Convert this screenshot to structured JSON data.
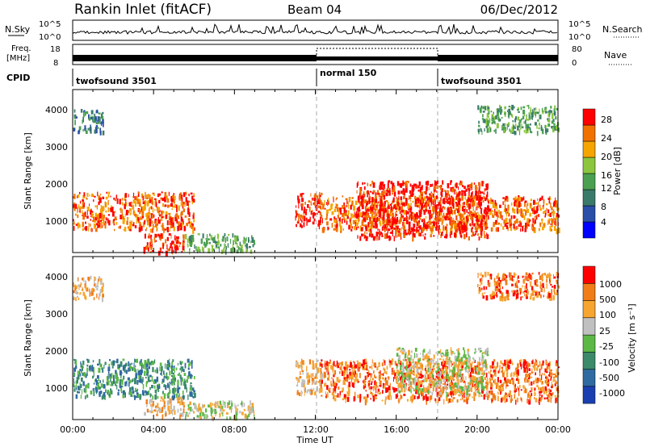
{
  "header": {
    "station": "Rankin Inlet (fitACF)",
    "beam": "Beam 04",
    "date": "06/Dec/2012"
  },
  "noise_panel": {
    "left_label": "N.Sky",
    "right_label": "N.Search",
    "left_ticks": [
      "10^5",
      "10^0"
    ],
    "right_ticks": [
      "10^5",
      "10^0"
    ]
  },
  "freq_panel": {
    "left_label_line1": "Freq.",
    "left_label_line2": "[MHz]",
    "left_ticks": [
      "18",
      "8"
    ],
    "right_label": "Nave",
    "right_ticks": [
      "80",
      "0"
    ]
  },
  "cpid": {
    "label": "CPID",
    "segments": [
      {
        "name": "twofsound 3501",
        "start_hour": 0
      },
      {
        "name": "normal 150",
        "start_hour": 12
      },
      {
        "name": "twofsound 3501",
        "start_hour": 18
      }
    ]
  },
  "x_axis": {
    "label": "Time UT",
    "ticks": [
      "00:00",
      "04:00",
      "08:00",
      "12:00",
      "16:00",
      "20:00",
      "00:00"
    ],
    "range_hours": [
      0,
      24
    ]
  },
  "power_panel": {
    "ylabel": "Slant Range [km]",
    "yticks": [
      "4000",
      "3000",
      "2000",
      "1000"
    ],
    "colorbar_label": "Power [dB]",
    "colorbar_ticks": [
      "28",
      "24",
      "20",
      "16",
      "12",
      "8",
      "4"
    ],
    "colors": [
      "#0000ff",
      "#2a4fa8",
      "#3a7a6a",
      "#4aa050",
      "#8cc63f",
      "#f6a500",
      "#f07000",
      "#ff0000"
    ]
  },
  "velocity_panel": {
    "ylabel": "Slant Range [km]",
    "yticks": [
      "4000",
      "3000",
      "2000",
      "1000"
    ],
    "colorbar_label": "Velocity [m s⁻¹]",
    "colorbar_ticks": [
      "1000",
      "500",
      "100",
      "25",
      "-25",
      "-100",
      "-500",
      "-1000"
    ],
    "colors": [
      "#1a3fb0",
      "#2f6aa0",
      "#3b8a6a",
      "#5cb845",
      "#c0c0c0",
      "#f6a530",
      "#f07d18",
      "#ff0000"
    ]
  },
  "chart_data": {
    "type": "heatmap",
    "x_unit": "hours UT",
    "y_unit": "km",
    "ylim": [
      180,
      4500
    ],
    "xlim": [
      0,
      24
    ],
    "power_regions": [
      {
        "x0": 0.0,
        "x1": 6.0,
        "y0": 800,
        "y1": 1800,
        "level": 6
      },
      {
        "x0": 3.5,
        "x1": 5.5,
        "y0": 200,
        "y1": 700,
        "level": 7
      },
      {
        "x0": 5.5,
        "x1": 9.0,
        "y0": 250,
        "y1": 700,
        "level": 3
      },
      {
        "x0": 11.0,
        "x1": 12.3,
        "y0": 900,
        "y1": 1800,
        "level": 7
      },
      {
        "x0": 12.2,
        "x1": 24.0,
        "y0": 800,
        "y1": 1700,
        "level": 6
      },
      {
        "x0": 14.0,
        "x1": 20.5,
        "y0": 600,
        "y1": 2100,
        "level": 7
      },
      {
        "x0": 0.0,
        "x1": 1.5,
        "y0": 3400,
        "y1": 4000,
        "level": 2
      },
      {
        "x0": 20.0,
        "x1": 24.0,
        "y0": 3400,
        "y1": 4100,
        "level": 3
      }
    ],
    "velocity_regions": [
      {
        "x0": 0.0,
        "x1": 6.0,
        "y0": 800,
        "y1": 1800,
        "level": 2
      },
      {
        "x0": 3.5,
        "x1": 5.5,
        "y0": 300,
        "y1": 800,
        "level": 5
      },
      {
        "x0": 5.5,
        "x1": 9.0,
        "y0": 250,
        "y1": 700,
        "level": 4
      },
      {
        "x0": 11.0,
        "x1": 12.3,
        "y0": 900,
        "y1": 1800,
        "level": 5
      },
      {
        "x0": 12.2,
        "x1": 24.0,
        "y0": 700,
        "y1": 1800,
        "level": 6
      },
      {
        "x0": 16.0,
        "x1": 20.5,
        "y0": 900,
        "y1": 2100,
        "level": 4
      },
      {
        "x0": 0.0,
        "x1": 1.5,
        "y0": 3400,
        "y1": 4000,
        "level": 5
      },
      {
        "x0": 20.0,
        "x1": 24.0,
        "y0": 3400,
        "y1": 4100,
        "level": 6
      }
    ]
  }
}
